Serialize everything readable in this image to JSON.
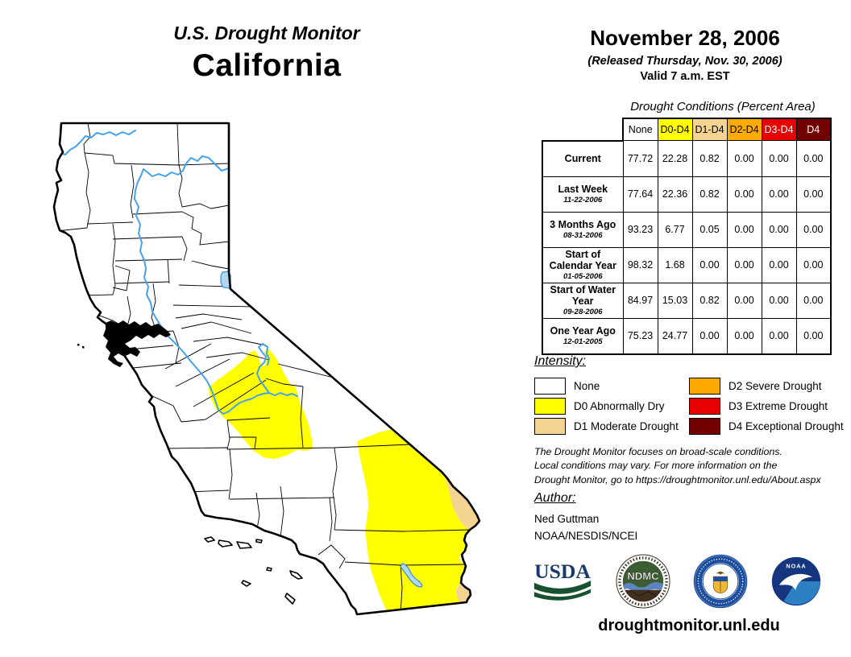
{
  "header": {
    "title_line1": "U.S. Drought Monitor",
    "title_line2": "California",
    "date": "November 28, 2006",
    "released": "(Released Thursday, Nov. 30, 2006)",
    "valid": "Valid 7 a.m. EST"
  },
  "table": {
    "caption": "Drought Conditions (Percent Area)",
    "columns": [
      "None",
      "D0-D4",
      "D1-D4",
      "D2-D4",
      "D3-D4",
      "D4"
    ],
    "column_colors": [
      "#FFFFFF",
      "#FFFF00",
      "#F5D491",
      "#FFAA00",
      "#E60000",
      "#730000"
    ],
    "column_text_colors": [
      "#000000",
      "#000000",
      "#000000",
      "#000000",
      "#FFFFFF",
      "#FFFFFF"
    ],
    "rows": [
      {
        "label": "Current",
        "date": "",
        "values": [
          "77.72",
          "22.28",
          "0.82",
          "0.00",
          "0.00",
          "0.00"
        ]
      },
      {
        "label": "Last Week",
        "date": "11-22-2006",
        "values": [
          "77.64",
          "22.36",
          "0.82",
          "0.00",
          "0.00",
          "0.00"
        ]
      },
      {
        "label": "3 Months Ago",
        "date": "08-31-2006",
        "values": [
          "93.23",
          "6.77",
          "0.05",
          "0.00",
          "0.00",
          "0.00"
        ]
      },
      {
        "label": "Start of Calendar Year",
        "date": "01-05-2006",
        "values": [
          "98.32",
          "1.68",
          "0.00",
          "0.00",
          "0.00",
          "0.00"
        ]
      },
      {
        "label": "Start of Water Year",
        "date": "09-28-2006",
        "values": [
          "84.97",
          "15.03",
          "0.82",
          "0.00",
          "0.00",
          "0.00"
        ]
      },
      {
        "label": "One Year Ago",
        "date": "12-01-2005",
        "values": [
          "75.23",
          "24.77",
          "0.00",
          "0.00",
          "0.00",
          "0.00"
        ]
      }
    ]
  },
  "legend": {
    "title": "Intensity:",
    "items": [
      {
        "code": "none",
        "label": "None",
        "color": "#FFFFFF"
      },
      {
        "code": "d0",
        "label": "D0 Abnormally Dry",
        "color": "#FFFF00"
      },
      {
        "code": "d1",
        "label": "D1 Moderate Drought",
        "color": "#F5D491"
      },
      {
        "code": "d2",
        "label": "D2 Severe Drought",
        "color": "#FFAA00"
      },
      {
        "code": "d3",
        "label": "D3 Extreme Drought",
        "color": "#E60000"
      },
      {
        "code": "d4",
        "label": "D4 Exceptional Drought",
        "color": "#730000"
      }
    ]
  },
  "map": {
    "river_color": "#46A1EC",
    "water_fill": "#B0D6F1",
    "water_stroke": "#3E8FD6"
  },
  "disclaimer": "The Drought Monitor focuses on broad-scale conditions.\nLocal conditions may vary. For more information on the\nDrought Monitor, go to https://droughtmonitor.unl.edu/About.aspx",
  "author": {
    "title": "Author:",
    "name": "Ned Guttman",
    "org": "NOAA/NESDIS/NCEI"
  },
  "logos": {
    "usda_text": "USDA",
    "ndmc_text": "NDMC",
    "noaa_text": "NOAA"
  },
  "footer": {
    "url": "droughtmonitor.unl.edu"
  }
}
